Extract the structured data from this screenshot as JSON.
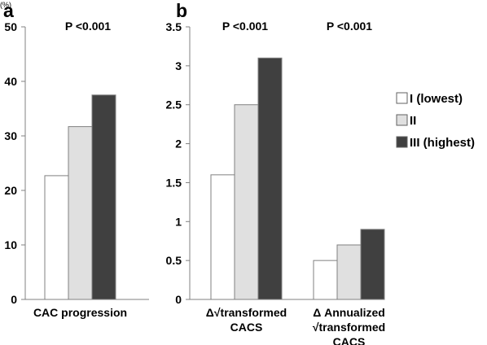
{
  "chart_data": [
    {
      "panel_label": "a",
      "type": "bar",
      "unit_label": "(%)",
      "categories": [
        "CAC progression"
      ],
      "series": [
        {
          "name": "I (lowest)",
          "values": [
            22.7
          ],
          "color": "#ffffff"
        },
        {
          "name": "II",
          "values": [
            31.7
          ],
          "color": "#e0e0e0"
        },
        {
          "name": "III (highest)",
          "values": [
            37.5
          ],
          "color": "#404040"
        }
      ],
      "annotations": [
        "P <0.001"
      ],
      "ylim": [
        0,
        50
      ],
      "yticks": [
        "0",
        "10",
        "20",
        "30",
        "40",
        "50"
      ],
      "xlabel": "",
      "ylabel": "",
      "grid": false
    },
    {
      "panel_label": "b",
      "type": "bar",
      "categories": [
        "Δ√transformed CACS",
        "Δ Annualized √transformed CACS"
      ],
      "category_lines": [
        [
          "Δ√transformed",
          "CACS"
        ],
        [
          "Δ Annualized",
          "√transformed",
          "CACS"
        ]
      ],
      "series": [
        {
          "name": "I (lowest)",
          "values": [
            1.6,
            0.5
          ],
          "color": "#ffffff"
        },
        {
          "name": "II",
          "values": [
            2.5,
            0.7
          ],
          "color": "#e0e0e0"
        },
        {
          "name": "III (highest)",
          "values": [
            3.1,
            0.9
          ],
          "color": "#404040"
        }
      ],
      "annotations": [
        "P <0.001",
        "P <0.001"
      ],
      "ylim": [
        0,
        3.5
      ],
      "yticks": [
        "0",
        "0.5",
        "1",
        "1.5",
        "2",
        "2.5",
        "3",
        "3.5"
      ],
      "xlabel": "",
      "ylabel": "",
      "grid": false
    }
  ],
  "legend": {
    "position": "right",
    "items": [
      {
        "label": "I (lowest)",
        "color": "#ffffff"
      },
      {
        "label": "II",
        "color": "#e0e0e0"
      },
      {
        "label": "III (highest)",
        "color": "#404040"
      }
    ]
  }
}
